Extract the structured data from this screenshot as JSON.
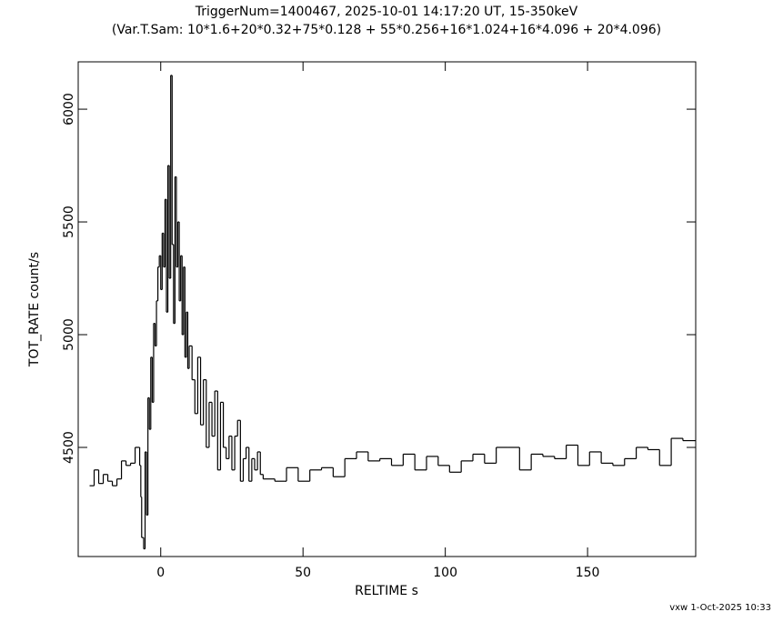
{
  "chart_data": {
    "type": "step",
    "title": "TriggerNum=1400467, 2025-10-01 14:17:20 UT, 15-350keV",
    "subtitle": "(Var.T.Sam: 10*1.6+20*0.32+75*0.128  +  55*0.256+16*1.024+16*4.096  +  20*4.096)",
    "x_label": "RELTIME  s",
    "y_label": "TOT_RATE  count/s",
    "footer": "vxw  1-Oct-2025 10:33",
    "color": "#000000",
    "xlim": [
      -29,
      188
    ],
    "ylim": [
      4016,
      6210
    ],
    "xticks": [
      0,
      50,
      100,
      150
    ],
    "yticks": [
      4500,
      5000,
      5500,
      6000
    ],
    "x": [
      -25,
      -23.4,
      -21.8,
      -20.2,
      -18.6,
      -17,
      -15.4,
      -13.8,
      -12.2,
      -10.6,
      -9,
      -7.4,
      -7,
      -6.7,
      -6,
      -5.5,
      -5,
      -4.5,
      -4,
      -3.5,
      -3,
      -2.5,
      -2,
      -1.5,
      -1,
      -0.5,
      0,
      0.5,
      1,
      1.5,
      2,
      2.5,
      3,
      3.5,
      4,
      4.5,
      5,
      5.5,
      6,
      6.5,
      7,
      7.5,
      8,
      8.5,
      9,
      9.5,
      10,
      11,
      12,
      13,
      14,
      15,
      16,
      17,
      18,
      19,
      20,
      21,
      22,
      23,
      24,
      25,
      26,
      27,
      28,
      29,
      30,
      31,
      32,
      33,
      34,
      35,
      36,
      40.1,
      44.2,
      48.3,
      52.4,
      56.5,
      60.6,
      64.7,
      68.8,
      72.9,
      77,
      81.1,
      85.2,
      89.3,
      93.4,
      97.5,
      101.5,
      105.6,
      109.7,
      113.8,
      117.9,
      122,
      126.1,
      130.2,
      134.3,
      138.4,
      142.5,
      146.6,
      150.7,
      154.8,
      158.9,
      163,
      167.1,
      171.2,
      175.3,
      179.4,
      183.5
    ],
    "values": [
      4330,
      4400,
      4340,
      4380,
      4350,
      4330,
      4360,
      4440,
      4420,
      4430,
      4500,
      4420,
      4280,
      4100,
      4050,
      4480,
      4200,
      4720,
      4580,
      4900,
      4700,
      5050,
      4950,
      5150,
      5300,
      5350,
      5200,
      5450,
      5300,
      5600,
      5100,
      5750,
      5250,
      6150,
      5400,
      5050,
      5700,
      5300,
      5500,
      5150,
      5350,
      5000,
      5300,
      4900,
      5100,
      4850,
      4950,
      4800,
      4650,
      4900,
      4600,
      4800,
      4500,
      4700,
      4550,
      4750,
      4400,
      4700,
      4500,
      4450,
      4550,
      4400,
      4550,
      4620,
      4350,
      4450,
      4500,
      4350,
      4450,
      4400,
      4480,
      4380,
      4360,
      4350,
      4410,
      4350,
      4400,
      4410,
      4370,
      4450,
      4480,
      4440,
      4450,
      4420,
      4470,
      4400,
      4460,
      4420,
      4390,
      4440,
      4470,
      4430,
      4500,
      4500,
      4400,
      4470,
      4460,
      4450,
      4510,
      4420,
      4480,
      4430,
      4420,
      4450,
      4500,
      4490,
      4420,
      4540,
      4530
    ]
  }
}
